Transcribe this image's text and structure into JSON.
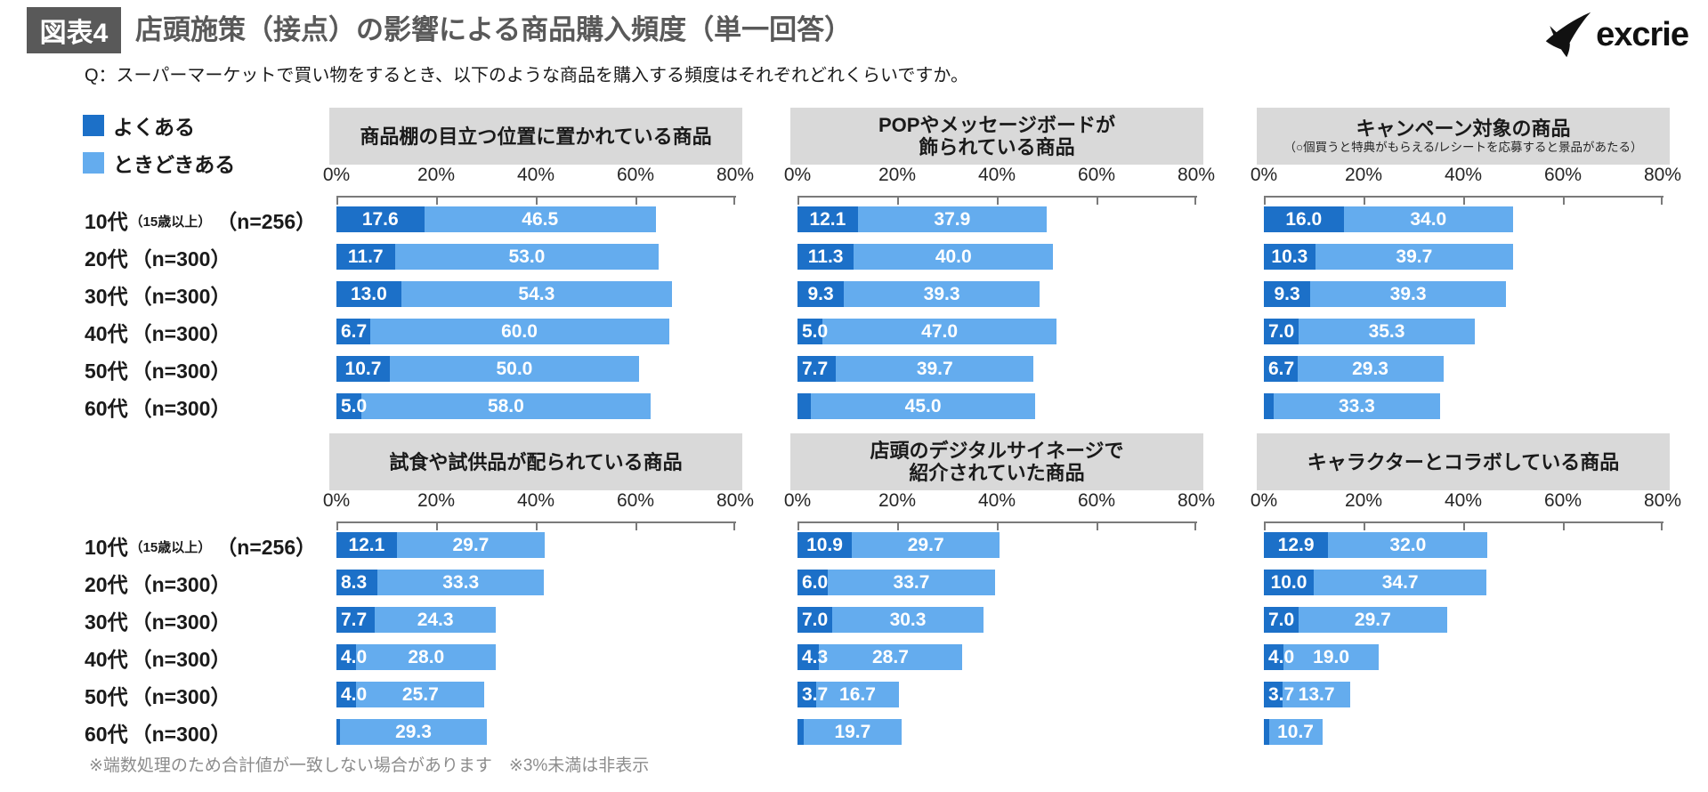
{
  "header": {
    "tag": "図表4",
    "title": "店頭施策（接点）の影響による商品購入頻度（単一回答）",
    "logo_text": "excrie",
    "question": "Q：スーパーマーケットで買い物をするとき、以下のような商品を購入する頻度はそれぞれどれくらいですか。"
  },
  "legend": {
    "items": [
      {
        "label": "よくある",
        "color": "#1c70c8"
      },
      {
        "label": "ときどきある",
        "color": "#64acee"
      }
    ]
  },
  "chart_data": {
    "type": "bar",
    "variant": "horizontal-stacked",
    "unit": "%",
    "xlim": [
      0,
      80
    ],
    "x_ticks": [
      "0%",
      "20%",
      "40%",
      "60%",
      "80%"
    ],
    "series_names": [
      "よくある",
      "ときどきある"
    ],
    "note": "values under 3% have no data label (※3%未満は非表示); unlabeled segment widths are estimates read from pixels",
    "categories": [
      {
        "main": "10代",
        "small": "（15歳以上）",
        "ncount": "（n=256）"
      },
      {
        "main": "20代",
        "small": "",
        "ncount": "（n=300）"
      },
      {
        "main": "30代",
        "small": "",
        "ncount": "（n=300）"
      },
      {
        "main": "40代",
        "small": "",
        "ncount": "（n=300）"
      },
      {
        "main": "50代",
        "small": "",
        "ncount": "（n=300）"
      },
      {
        "main": "60代",
        "small": "",
        "ncount": "（n=300）"
      }
    ],
    "charts": [
      {
        "title_lines": [
          "商品棚の目立つ位置に置かれている商品"
        ],
        "subtitle": "",
        "rows": [
          {
            "often": 17.6,
            "sometimes": 46.5
          },
          {
            "often": 11.7,
            "sometimes": 53.0
          },
          {
            "often": 13.0,
            "sometimes": 54.3
          },
          {
            "often": 6.7,
            "sometimes": 60.0
          },
          {
            "often": 10.7,
            "sometimes": 50.0
          },
          {
            "often": 5.0,
            "sometimes": 58.0
          }
        ]
      },
      {
        "title_lines": [
          "POPやメッセージボードが",
          "飾られている商品"
        ],
        "subtitle": "",
        "rows": [
          {
            "often": 12.1,
            "sometimes": 37.9
          },
          {
            "often": 11.3,
            "sometimes": 40.0
          },
          {
            "often": 9.3,
            "sometimes": 39.3
          },
          {
            "often": 5.0,
            "sometimes": 47.0
          },
          {
            "often": 7.7,
            "sometimes": 39.7
          },
          {
            "often": 2.7,
            "often_label_hidden": true,
            "sometimes": 45.0
          }
        ]
      },
      {
        "title_lines": [
          "キャンペーン対象の商品"
        ],
        "subtitle": "（○個買うと特典がもらえる/レシートを応募すると景品があたる）",
        "rows": [
          {
            "often": 16.0,
            "sometimes": 34.0
          },
          {
            "often": 10.3,
            "sometimes": 39.7
          },
          {
            "often": 9.3,
            "sometimes": 39.3
          },
          {
            "often": 7.0,
            "sometimes": 35.3
          },
          {
            "often": 6.7,
            "sometimes": 29.3
          },
          {
            "often": 2.0,
            "often_label_hidden": true,
            "sometimes": 33.3
          }
        ]
      },
      {
        "title_lines": [
          "試食や試供品が配られている商品"
        ],
        "subtitle": "",
        "rows": [
          {
            "often": 12.1,
            "sometimes": 29.7
          },
          {
            "often": 8.3,
            "sometimes": 33.3
          },
          {
            "often": 7.7,
            "sometimes": 24.3
          },
          {
            "often": 4.0,
            "sometimes": 28.0
          },
          {
            "often": 4.0,
            "sometimes": 25.7
          },
          {
            "often": 0.8,
            "often_label_hidden": true,
            "sometimes": 29.3
          }
        ]
      },
      {
        "title_lines": [
          "店頭のデジタルサイネージで",
          "紹介されていた商品"
        ],
        "subtitle": "",
        "rows": [
          {
            "often": 10.9,
            "sometimes": 29.7
          },
          {
            "often": 6.0,
            "sometimes": 33.7
          },
          {
            "often": 7.0,
            "sometimes": 30.3
          },
          {
            "often": 4.3,
            "sometimes": 28.7
          },
          {
            "often": 3.7,
            "sometimes": 16.7
          },
          {
            "often": 1.2,
            "often_label_hidden": true,
            "sometimes": 19.7
          }
        ]
      },
      {
        "title_lines": [
          "キャラクターとコラボしている商品"
        ],
        "subtitle": "",
        "rows": [
          {
            "often": 12.9,
            "sometimes": 32.0
          },
          {
            "often": 10.0,
            "sometimes": 34.7
          },
          {
            "often": 7.0,
            "sometimes": 29.7
          },
          {
            "often": 4.0,
            "sometimes": 19.0
          },
          {
            "often": 3.7,
            "sometimes": 13.7
          },
          {
            "often": 1.0,
            "often_label_hidden": true,
            "sometimes": 10.7
          }
        ]
      }
    ],
    "footnote": "※端数処理のため合計値が一致しない場合があります　※3%未満は非表示"
  }
}
